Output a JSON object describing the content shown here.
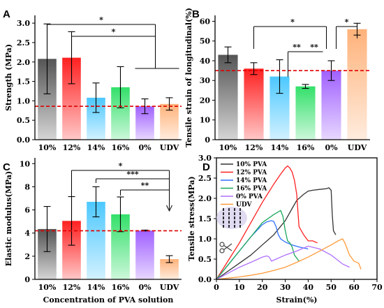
{
  "chart_data": [
    {
      "panel": "A",
      "type": "bar",
      "categories": [
        "10%",
        "12%",
        "14%",
        "16%",
        "0%",
        "UDV"
      ],
      "values": [
        2.08,
        2.11,
        1.08,
        1.35,
        0.86,
        0.92
      ],
      "errors": [
        0.9,
        0.67,
        0.38,
        0.53,
        0.19,
        0.16
      ],
      "colors": [
        "#555555",
        "#ff2020",
        "#4cc8ff",
        "#33e06a",
        "#a060ff",
        "#ffb27a"
      ],
      "ylabel": "Strength (MPa)",
      "ylim": [
        0.0,
        3.2
      ],
      "yticks": [
        "0.0",
        "0.5",
        "1.0",
        "1.5",
        "2.0",
        "2.5",
        "3.0"
      ],
      "reference_line": 0.86,
      "significance": [
        {
          "label": "*",
          "from": "10%",
          "to": "0%"
        },
        {
          "label": "*",
          "from": "12%",
          "to": "0%"
        }
      ]
    },
    {
      "panel": "B",
      "type": "bar",
      "categories": [
        "10%",
        "12%",
        "14%",
        "16%",
        "0%",
        "UDV"
      ],
      "values": [
        43,
        36,
        32,
        27,
        35,
        56
      ],
      "errors": [
        4,
        3,
        8.5,
        1,
        5,
        3
      ],
      "colors": [
        "#555555",
        "#ff2020",
        "#4cc8ff",
        "#33e06a",
        "#a060ff",
        "#ffb27a"
      ],
      "ylabel": "Tensile strain of longitudinal(%)",
      "ylim": [
        0,
        63
      ],
      "yticks": [
        "0",
        "10",
        "20",
        "30",
        "40",
        "50",
        "60"
      ],
      "reference_line": 35,
      "significance": [
        {
          "label": "*",
          "from": "12%",
          "to": "0%"
        },
        {
          "label": "**",
          "from": "14%",
          "to": "16%"
        },
        {
          "label": "**",
          "from": "16%",
          "to": "0%"
        },
        {
          "label": "*",
          "from": "0%",
          "to": "UDV"
        }
      ]
    },
    {
      "panel": "C",
      "type": "bar",
      "categories": [
        "10%",
        "12%",
        "14%",
        "16%",
        "0%",
        "UDV"
      ],
      "values": [
        4.35,
        5.05,
        6.7,
        5.62,
        4.22,
        1.75
      ],
      "errors": [
        1.95,
        2.1,
        1.3,
        1.5,
        0.04,
        0.3
      ],
      "colors": [
        "#555555",
        "#ff2020",
        "#4cc8ff",
        "#33e06a",
        "#a060ff",
        "#ffb27a"
      ],
      "ylabel": "Elastic modulus(MPa)",
      "xlabel": "Concentration of PVA solution",
      "ylim": [
        0,
        10.5
      ],
      "yticks": [
        "0",
        "2",
        "4",
        "6",
        "8",
        "10"
      ],
      "reference_line": 4.2,
      "significance": [
        {
          "label": "*",
          "from": "12%",
          "to": "UDV"
        },
        {
          "label": "***",
          "from": "14%",
          "to": "UDV"
        },
        {
          "label": "**",
          "from": "16%",
          "to": "UDV"
        }
      ]
    },
    {
      "panel": "D",
      "type": "line",
      "xlabel": "Strain(%)",
      "ylabel": "Tensile stress(MPa)",
      "xlim": [
        0,
        70
      ],
      "ylim": [
        0,
        3.0
      ],
      "xticks": [
        "0",
        "10",
        "20",
        "30",
        "40",
        "50",
        "60",
        "70"
      ],
      "yticks": [
        "0.0",
        "0.5",
        "1.0",
        "1.5",
        "2.0",
        "2.5",
        "3.0"
      ],
      "series": [
        {
          "name": "10% PVA",
          "color": "#333333",
          "x": [
            0,
            5,
            10,
            15,
            20,
            25,
            30,
            33,
            35,
            38,
            40,
            42,
            45,
            48,
            49,
            50,
            50.5,
            51,
            52
          ],
          "y": [
            0,
            0.2,
            0.4,
            0.6,
            0.85,
            1.1,
            1.45,
            1.75,
            1.95,
            2.1,
            2.18,
            2.2,
            2.22,
            2.24,
            2.26,
            2.2,
            1.6,
            1.2,
            1.1
          ]
        },
        {
          "name": "12% PVA",
          "color": "#ff2020",
          "x": [
            0,
            5,
            10,
            15,
            20,
            25,
            28,
            30,
            31,
            32,
            33,
            34,
            35,
            35.5,
            36,
            38,
            40,
            42,
            44
          ],
          "y": [
            0,
            0.45,
            0.9,
            1.4,
            1.9,
            2.35,
            2.6,
            2.75,
            2.8,
            2.75,
            2.65,
            2.45,
            2.1,
            1.7,
            1.3,
            1.1,
            0.95,
            0.95,
            0.9
          ]
        },
        {
          "name": "14% PVA",
          "color": "#3070ff",
          "x": [
            0,
            5,
            10,
            15,
            20,
            22,
            24,
            25,
            26,
            27,
            28,
            30,
            33,
            36,
            40
          ],
          "y": [
            0,
            0.35,
            0.7,
            1.05,
            1.35,
            1.42,
            1.45,
            1.43,
            1.3,
            1.1,
            1.0,
            0.92,
            0.85,
            0.8,
            0.75
          ]
        },
        {
          "name": "16% PVA",
          "color": "#1aa85a",
          "x": [
            0,
            5,
            10,
            15,
            20,
            25,
            28,
            29,
            30,
            31,
            32,
            33,
            34,
            36
          ],
          "y": [
            0,
            0.35,
            0.7,
            1.05,
            1.4,
            1.6,
            1.7,
            1.55,
            1.2,
            0.95,
            0.9,
            0.8,
            0.6,
            0.45
          ]
        },
        {
          "name": "0%  PVA",
          "color": "#b070ff",
          "x": [
            0,
            5,
            10,
            15,
            20,
            22,
            23,
            24,
            26,
            30,
            35,
            40,
            45,
            50,
            55,
            58
          ],
          "y": [
            0,
            0.15,
            0.3,
            0.42,
            0.55,
            0.58,
            0.55,
            0.45,
            0.5,
            0.6,
            0.7,
            0.82,
            0.75,
            0.6,
            0.38,
            0.3
          ]
        },
        {
          "name": "UDV",
          "color": "#ff9a3a",
          "x": [
            0,
            5,
            10,
            15,
            20,
            25,
            30,
            35,
            40,
            45,
            50,
            53,
            55,
            56,
            58,
            60,
            62,
            63
          ],
          "y": [
            0,
            0.03,
            0.06,
            0.1,
            0.15,
            0.22,
            0.3,
            0.42,
            0.55,
            0.7,
            0.85,
            0.95,
            1.0,
            0.9,
            0.6,
            0.45,
            0.4,
            0.25
          ]
        }
      ]
    }
  ]
}
